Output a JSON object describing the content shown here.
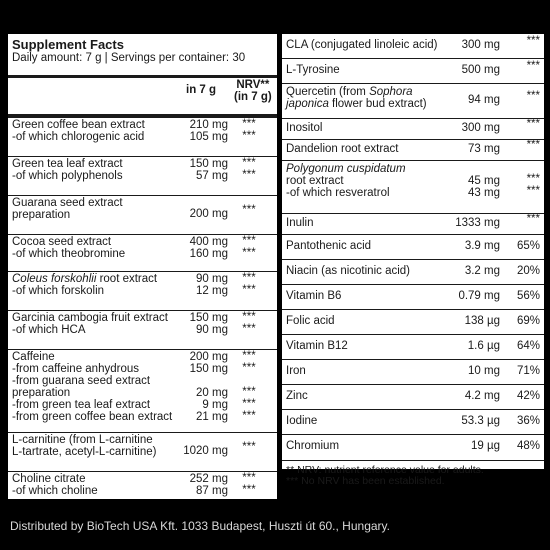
{
  "header": {
    "title": "Supplement Facts",
    "subtitle": "Daily amount: 7 g | Servings per container: 30",
    "col_amount": "in 7 g",
    "col_nrv_line1": "NRV**",
    "col_nrv_line2": "(in 7 g)"
  },
  "left_rows": [
    {
      "lines": [
        "Green coffee bean extract",
        "-of which chlorogenic acid"
      ],
      "amounts": [
        "210 mg",
        "105 mg"
      ],
      "nrv": [
        "***",
        "***"
      ]
    },
    {
      "lines": [
        "Green tea leaf extract",
        "-of which polyphenols"
      ],
      "amounts": [
        "150 mg",
        "57 mg"
      ],
      "nrv": [
        "***",
        "***"
      ]
    },
    {
      "lines": [
        "Guarana seed extract",
        "preparation"
      ],
      "amounts": [
        "200 mg"
      ],
      "nrv": [
        "***"
      ]
    },
    {
      "lines": [
        "Cocoa seed extract",
        "-of which theobromine"
      ],
      "amounts": [
        "400 mg",
        "160 mg"
      ],
      "nrv": [
        "***",
        "***"
      ]
    },
    {
      "lines": [
        "Coleus forskohlii root extract",
        "-of which forskolin"
      ],
      "amounts": [
        "90 mg",
        "12 mg"
      ],
      "nrv": [
        "***",
        "***"
      ]
    },
    {
      "lines": [
        "Garcinia cambogia fruit extract",
        "-of which HCA"
      ],
      "amounts": [
        "150 mg",
        "90 mg"
      ],
      "nrv": [
        "***",
        "***"
      ]
    },
    {
      "lines": [
        "Caffeine",
        "-from caffeine anhydrous",
        "-from guarana seed extract",
        "preparation",
        "-from green tea leaf extract",
        "-from green coffee bean extract"
      ],
      "amounts": [
        "200 mg",
        "150 mg",
        "",
        "20 mg",
        "9 mg",
        "21 mg"
      ],
      "nrv": [
        "***",
        "***",
        "",
        "***",
        "***",
        "***"
      ]
    },
    {
      "lines": [
        "L-carnitine (from L-carnitine",
        "L-tartrate, acetyl-L-carnitine)"
      ],
      "amounts": [
        "1020 mg"
      ],
      "nrv": [
        "***"
      ]
    },
    {
      "lines": [
        "Choline citrate",
        "-of which choline"
      ],
      "amounts": [
        "252 mg",
        "87 mg"
      ],
      "nrv": [
        "***",
        "***"
      ]
    }
  ],
  "right_rows": [
    {
      "lines": [
        "CLA (conjugated linoleic acid)"
      ],
      "amount": "300 mg",
      "nrv": "***"
    },
    {
      "lines": [
        "L-Tyrosine"
      ],
      "amount": "500 mg",
      "nrv": "***"
    },
    {
      "lines": [
        "Quercetin (from Sophora",
        "japonica flower bud extract)"
      ],
      "amount": "94 mg",
      "nrv": "***"
    },
    {
      "lines": [
        "Inositol"
      ],
      "amount": "300 mg",
      "nrv": "***"
    },
    {
      "lines": [
        "Dandelion root extract"
      ],
      "amount": "73 mg",
      "nrv": "***"
    },
    {
      "lines": [
        "Polygonum cuspidatum",
        "root extract",
        "-of which resveratrol"
      ],
      "amounts": [
        "",
        "45 mg",
        "43 mg"
      ],
      "nrvs": [
        "",
        "***",
        "***"
      ]
    },
    {
      "lines": [
        "Inulin"
      ],
      "amount": "1333 mg",
      "nrv": "***"
    },
    {
      "lines": [
        "Pantothenic acid"
      ],
      "amount": "3.9 mg",
      "nrv": "65%"
    },
    {
      "lines": [
        "Niacin (as nicotinic acid)"
      ],
      "amount": "3.2 mg",
      "nrv": "20%"
    },
    {
      "lines": [
        "Vitamin B6"
      ],
      "amount": "0.79 mg",
      "nrv": "56%"
    },
    {
      "lines": [
        "Folic acid"
      ],
      "amount": "138 µg",
      "nrv": "69%"
    },
    {
      "lines": [
        "Vitamin B12"
      ],
      "amount": "1.6 µg",
      "nrv": "64%"
    },
    {
      "lines": [
        "Iron"
      ],
      "amount": "10 mg",
      "nrv": "71%"
    },
    {
      "lines": [
        "Zinc"
      ],
      "amount": "4.2 mg",
      "nrv": "42%"
    },
    {
      "lines": [
        "Iodine"
      ],
      "amount": "53.3 µg",
      "nrv": "36%"
    },
    {
      "lines": [
        "Chromium"
      ],
      "amount": "19 µg",
      "nrv": "48%"
    }
  ],
  "footnotes": {
    "nrv_note": "** NRV: nutrient reference value for adults.",
    "no_nrv_note": "*** No NRV has been established."
  },
  "distributor": "Distributed by BioTech USA Kft. 1033 Budapest, Huszti út 60., Hungary."
}
